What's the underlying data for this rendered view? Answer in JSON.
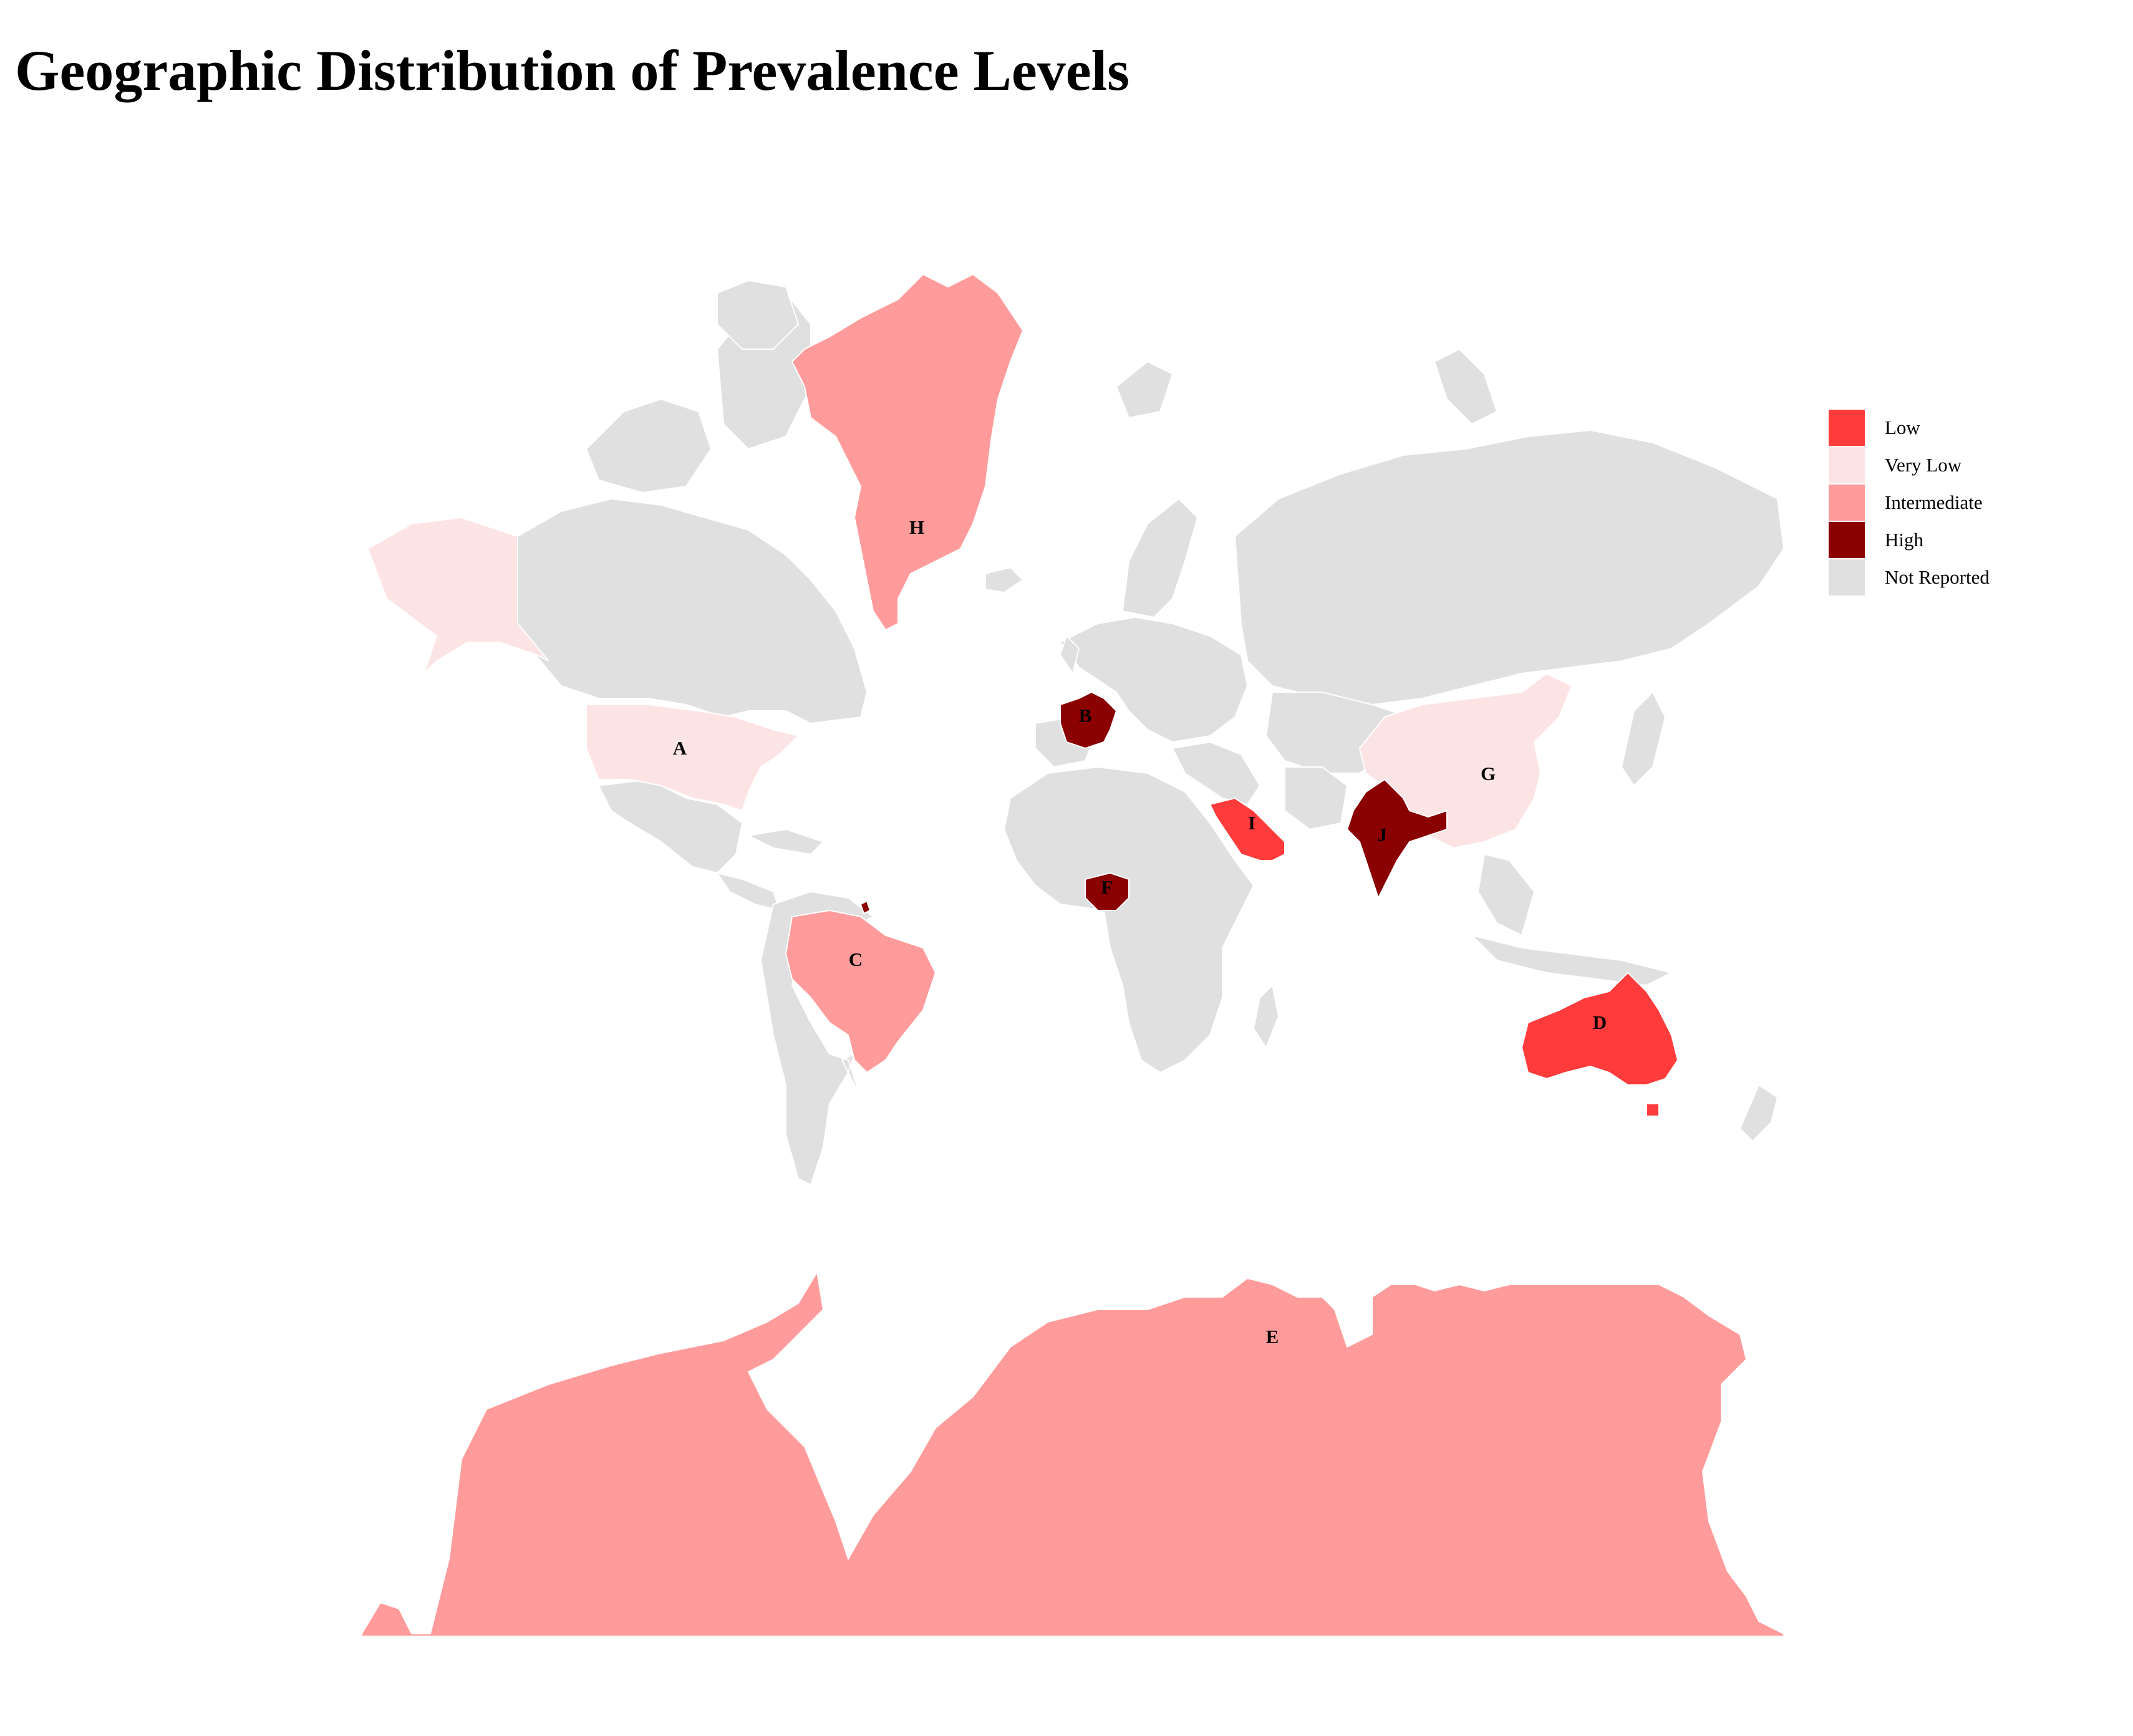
{
  "title": "Geographic Distribution of Prevalence Levels",
  "legend": [
    {
      "label": "Low",
      "color": "#ff3b3b"
    },
    {
      "label": "Very Low",
      "color": "#fde4e4"
    },
    {
      "label": "Intermediate",
      "color": "#ff9b9b"
    },
    {
      "label": "High",
      "color": "#8b0000"
    },
    {
      "label": "Not Reported",
      "color": "#e0e0e0"
    }
  ],
  "regions": [
    {
      "label": "A",
      "level": "Very Low"
    },
    {
      "label": "B",
      "level": "High"
    },
    {
      "label": "C",
      "level": "Intermediate"
    },
    {
      "label": "D",
      "level": "Low"
    },
    {
      "label": "E",
      "level": "Intermediate"
    },
    {
      "label": "F",
      "level": "High"
    },
    {
      "label": "G",
      "level": "Very Low"
    },
    {
      "label": "H",
      "level": "Intermediate"
    },
    {
      "label": "I",
      "level": "Low"
    },
    {
      "label": "J",
      "level": "High"
    }
  ]
}
